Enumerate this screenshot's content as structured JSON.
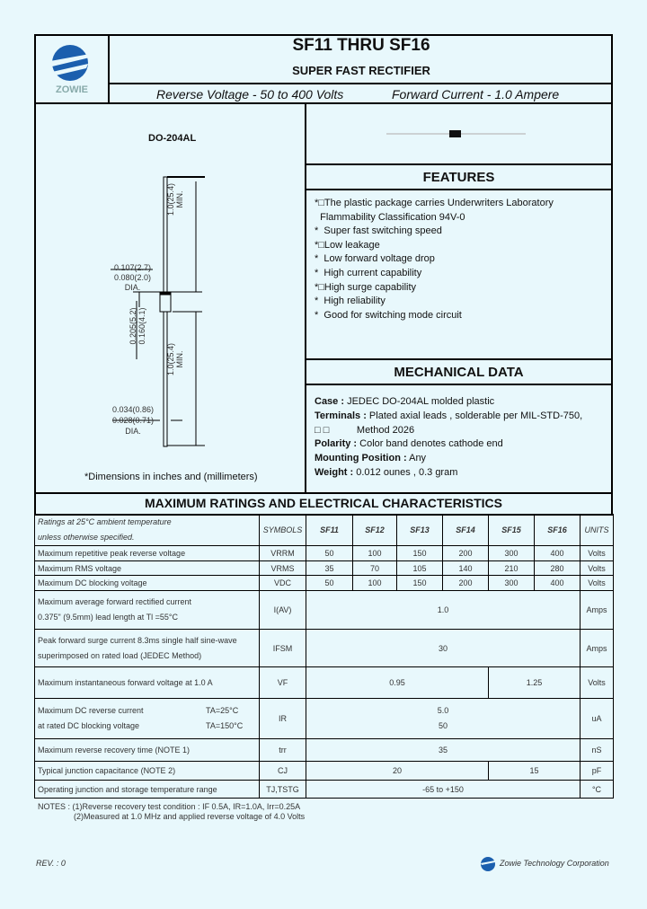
{
  "logo": {
    "text": "ZOWIE"
  },
  "header": {
    "title": "SF11  THRU  SF16",
    "subtitle": "SUPER  FAST  RECTIFIER",
    "reverse_voltage": "Reverse Voltage - 50 to 400 Volts",
    "forward_current": "Forward Current - 1.0 Ampere"
  },
  "package": {
    "name": "DO-204AL",
    "dim_lead_len_top": "1.0(25.4)",
    "dim_min_top": "MIN.",
    "dim_body_dia_max": "0.107(2.7)",
    "dim_body_dia_min": "0.080(2.0)",
    "dia1": "DIA.",
    "dim_body_len_max": "0.205(5.2)",
    "dim_body_len_min": "0.160(4.1)",
    "dim_lead_len_bot": "1.0(25.4)",
    "dim_min_bot": "MIN.",
    "dim_lead_dia_max": "0.034(0.86)",
    "dim_lead_dia_min": "0.028(0.71)",
    "dia2": "DIA.",
    "note": "*Dimensions in inches and (millimeters)"
  },
  "features": {
    "heading": "FEATURES",
    "items": [
      "*□The plastic package carries Underwriters Laboratory",
      "  Flammability Classification 94V-0",
      "*  Super fast switching speed",
      "*□Low leakage",
      "*  Low forward voltage drop",
      "*  High current capability",
      "*□High surge capability",
      "*  High reliability",
      "*  Good for switching mode circuit"
    ]
  },
  "mechanical": {
    "heading": "MECHANICAL DATA",
    "items": [
      {
        "label": "Case :",
        "text": " JEDEC DO-204AL molded plastic"
      },
      {
        "label": "Terminals :",
        "text": " Plated axial leads , solderable per MIL-STD-750,"
      },
      {
        "label": "",
        "text": "□ □          Method 2026"
      },
      {
        "label": "Polarity :",
        "text": " Color band denotes cathode end"
      },
      {
        "label": "Mounting Position :",
        "text": " Any"
      },
      {
        "label": "Weight :",
        "text": " 0.012 ounes , 0.3 gram"
      }
    ]
  },
  "ratings": {
    "title": "MAXIMUM RATINGS AND ELECTRICAL CHARACTERISTICS",
    "cond1": "Ratings at 25°C ambient temperature",
    "cond2": "unless otherwise specified.",
    "headers": [
      "SYMBOLS",
      "SF11",
      "SF12",
      "SF13",
      "SF14",
      "SF15",
      "SF16",
      "UNITS"
    ],
    "rows": [
      {
        "param": "Maximum repetitive peak reverse voltage",
        "symbol": "VRRM",
        "values": [
          "50",
          "100",
          "150",
          "200",
          "300",
          "400"
        ],
        "unit": "Volts"
      },
      {
        "param": "Maximum RMS voltage",
        "symbol": "VRMS",
        "values": [
          "35",
          "70",
          "105",
          "140",
          "210",
          "280"
        ],
        "unit": "Volts"
      },
      {
        "param": "Maximum DC blocking voltage",
        "symbol": "VDC",
        "values": [
          "50",
          "100",
          "150",
          "200",
          "300",
          "400"
        ],
        "unit": "Volts"
      },
      {
        "param": "Maximum average forward rectified current",
        "param2": "0.375\" (9.5mm) lead length at Tl =55°C",
        "symbol": "I(AV)",
        "value": "1.0",
        "unit": "Amps"
      },
      {
        "param": "Peak forward surge current 8.3ms single half sine-wave",
        "param2": "superimposed on rated load (JEDEC Method)",
        "symbol": "IFSM",
        "value": "30",
        "unit": "Amps"
      },
      {
        "param": "Maximum instantaneous forward voltage at 1.0 A",
        "symbol": "VF",
        "value_a": "0.95",
        "value_b": "1.25",
        "unit": "Volts"
      },
      {
        "param": "Maximum DC reverse current",
        "param2": "at rated DC blocking voltage",
        "cond_a": "TA=25°C",
        "cond_b": "TA=150°C",
        "symbol": "IR",
        "value_a": "5.0",
        "value_b": "50",
        "unit": "uA"
      },
      {
        "param": "Maximum reverse recovery time (NOTE 1)",
        "symbol": "trr",
        "value": "35",
        "unit": "nS"
      },
      {
        "param": "Typical junction capacitance (NOTE 2)",
        "symbol": "CJ",
        "value_a": "20",
        "value_b": "15",
        "unit": "pF"
      },
      {
        "param": "Operating junction and storage temperature range",
        "symbol": "TJ,TSTG",
        "value": "-65 to +150",
        "unit": "°C"
      }
    ]
  },
  "notes": {
    "line1": "NOTES : (1)Reverse recovery test condition : IF 0.5A, IR=1.0A, Irr=0.25A",
    "line2": "(2)Measured at 1.0 MHz and applied reverse voltage of 4.0 Volts"
  },
  "footer": {
    "rev": "REV. : 0",
    "company": "Zowie Technology Corporation"
  }
}
